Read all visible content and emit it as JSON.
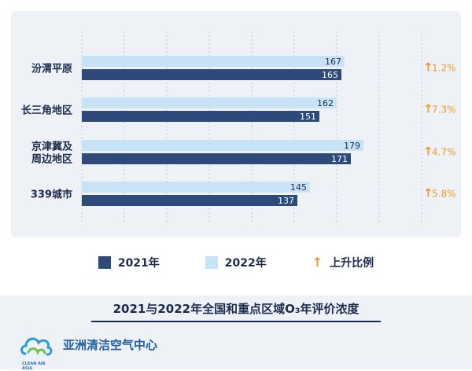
{
  "chart_data": {
    "type": "bar",
    "orientation": "horizontal",
    "categories": [
      "汾渭平原",
      "长三角地区",
      "京津冀及周边地区",
      "339城市"
    ],
    "category_lines": [
      [
        "汾渭平原"
      ],
      [
        "长三角地区"
      ],
      [
        "京津冀及",
        "周边地区"
      ],
      [
        "339城市"
      ]
    ],
    "series": [
      {
        "name": "2022年",
        "values": [
          167,
          162,
          179,
          145
        ],
        "color": "#c9e3f6"
      },
      {
        "name": "2021年",
        "values": [
          165,
          151,
          171,
          137
        ],
        "color": "#2d4a7a"
      }
    ],
    "changes": [
      "1.2%",
      "7.3%",
      "4.7%",
      "5.8%"
    ],
    "xlim": [
      0,
      200
    ],
    "title": "2021与2022年全国和重点区域O₃年评价浓度",
    "grid": "vertical-dotted"
  },
  "legend": {
    "series_2021": "2021年",
    "series_2022": "2022年",
    "change": "上升比例",
    "arrow": "↑",
    "color_2021": "#2d4a7a",
    "color_2022": "#c9e3f6",
    "color_arrow": "#f09a2a"
  },
  "footer": {
    "org_name": "亚洲清洁空气中心",
    "logo_text": "CLEAN AIR ASIA"
  }
}
